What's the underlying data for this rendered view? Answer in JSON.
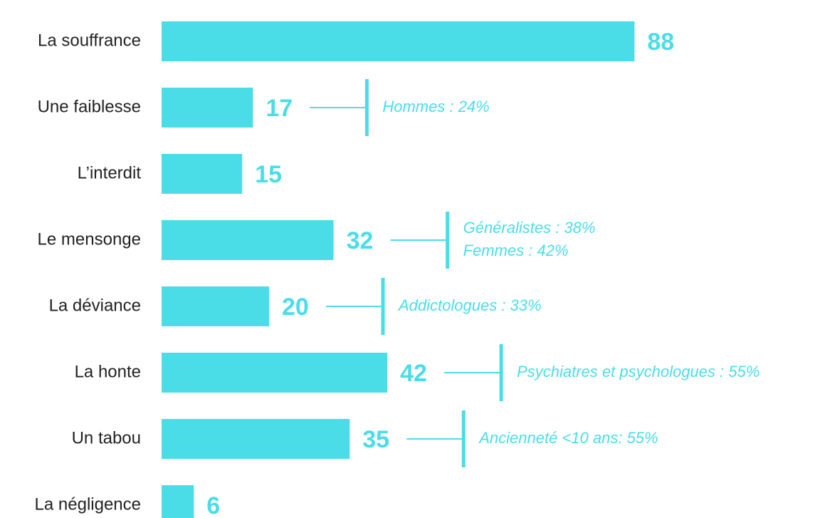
{
  "chart_data": {
    "type": "hbar",
    "categories": [
      "La souffrance",
      "Une faiblesse",
      "L’interdit",
      "Le mensonge",
      "La déviance",
      "La honte",
      "Un tabou",
      "La négligence"
    ],
    "values": [
      88,
      17,
      15,
      32,
      20,
      42,
      35,
      6
    ],
    "color": "#4adde8",
    "xlim": [
      0,
      100
    ],
    "annotations": [
      null,
      [
        "Hommes : 24%"
      ],
      null,
      [
        "Généralistes : 38%",
        "Femmes : 42%"
      ],
      [
        "Addictologues : 33%"
      ],
      [
        "Psychiatres et psychologues : 55%"
      ],
      [
        "Ancienneté <10 ans: 55%"
      ],
      null
    ]
  }
}
